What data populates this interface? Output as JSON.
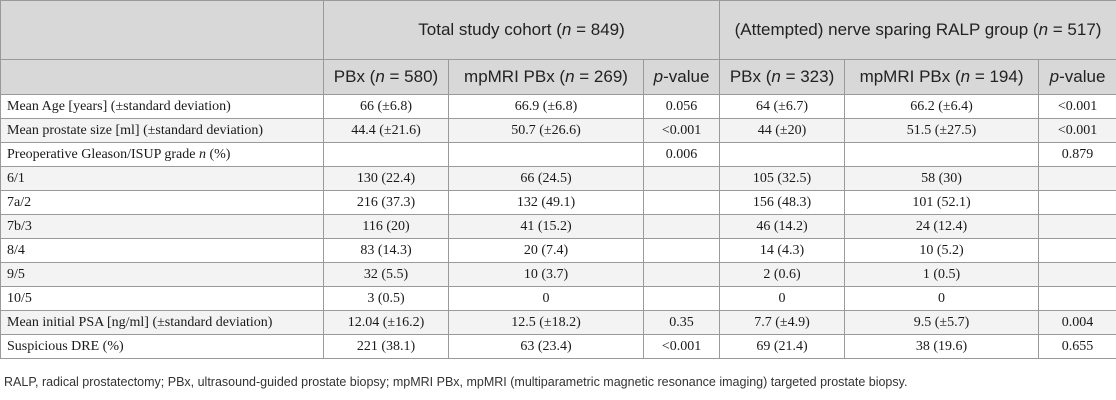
{
  "header": {
    "group1": "Total study cohort (n = 849)",
    "group2": "(Attempted) nerve sparing RALP group (n = 517)",
    "columns": [
      "PBx (n = 580)",
      "mpMRI PBx (n = 269)",
      "p-value",
      "PBx (n = 323)",
      "mpMRI PBx (n = 194)",
      "p-value"
    ]
  },
  "rows": [
    {
      "label": "Mean Age [years] (±standard deviation)",
      "cells": [
        "66 (±6.8)",
        "66.9 (±6.8)",
        "0.056",
        "64 (±6.7)",
        "66.2 (±6.4)",
        "<0.001"
      ]
    },
    {
      "label": "Mean prostate size [ml] (±standard deviation)",
      "cells": [
        "44.4 (±21.6)",
        "50.7 (±26.6)",
        "<0.001",
        "44 (±20)",
        "51.5 (±27.5)",
        "<0.001"
      ]
    },
    {
      "label": "Preoperative Gleason/ISUP grade n (%)",
      "cells": [
        "",
        "",
        "0.006",
        "",
        "",
        "0.879"
      ]
    },
    {
      "label": "6/1",
      "cells": [
        "130 (22.4)",
        "66 (24.5)",
        "",
        "105 (32.5)",
        "58 (30)",
        ""
      ]
    },
    {
      "label": "7a/2",
      "cells": [
        "216 (37.3)",
        "132 (49.1)",
        "",
        "156 (48.3)",
        "101 (52.1)",
        ""
      ]
    },
    {
      "label": "7b/3",
      "cells": [
        "116 (20)",
        "41 (15.2)",
        "",
        "46 (14.2)",
        "24 (12.4)",
        ""
      ]
    },
    {
      "label": "8/4",
      "cells": [
        "83 (14.3)",
        "20 (7.4)",
        "",
        "14 (4.3)",
        "10 (5.2)",
        ""
      ]
    },
    {
      "label": "9/5",
      "cells": [
        "32 (5.5)",
        "10 (3.7)",
        "",
        "2 (0.6)",
        "1 (0.5)",
        ""
      ]
    },
    {
      "label": "10/5",
      "cells": [
        "3 (0.5)",
        "0",
        "",
        "0",
        "0",
        ""
      ]
    },
    {
      "label": "Mean initial PSA [ng/ml] (±standard deviation)",
      "cells": [
        "12.04 (±16.2)",
        "12.5 (±18.2)",
        "0.35",
        "7.7 (±4.9)",
        "9.5 (±5.7)",
        "0.004"
      ]
    },
    {
      "label": "Suspicious DRE (%)",
      "cells": [
        "221 (38.1)",
        "63 (23.4)",
        "<0.001",
        "69 (21.4)",
        "38 (19.6)",
        "0.655"
      ]
    }
  ],
  "footnote": "RALP, radical prostatectomy; PBx, ultrasound-guided prostate biopsy; mpMRI PBx, mpMRI (multiparametric magnetic resonance imaging) targeted prostate biopsy."
}
